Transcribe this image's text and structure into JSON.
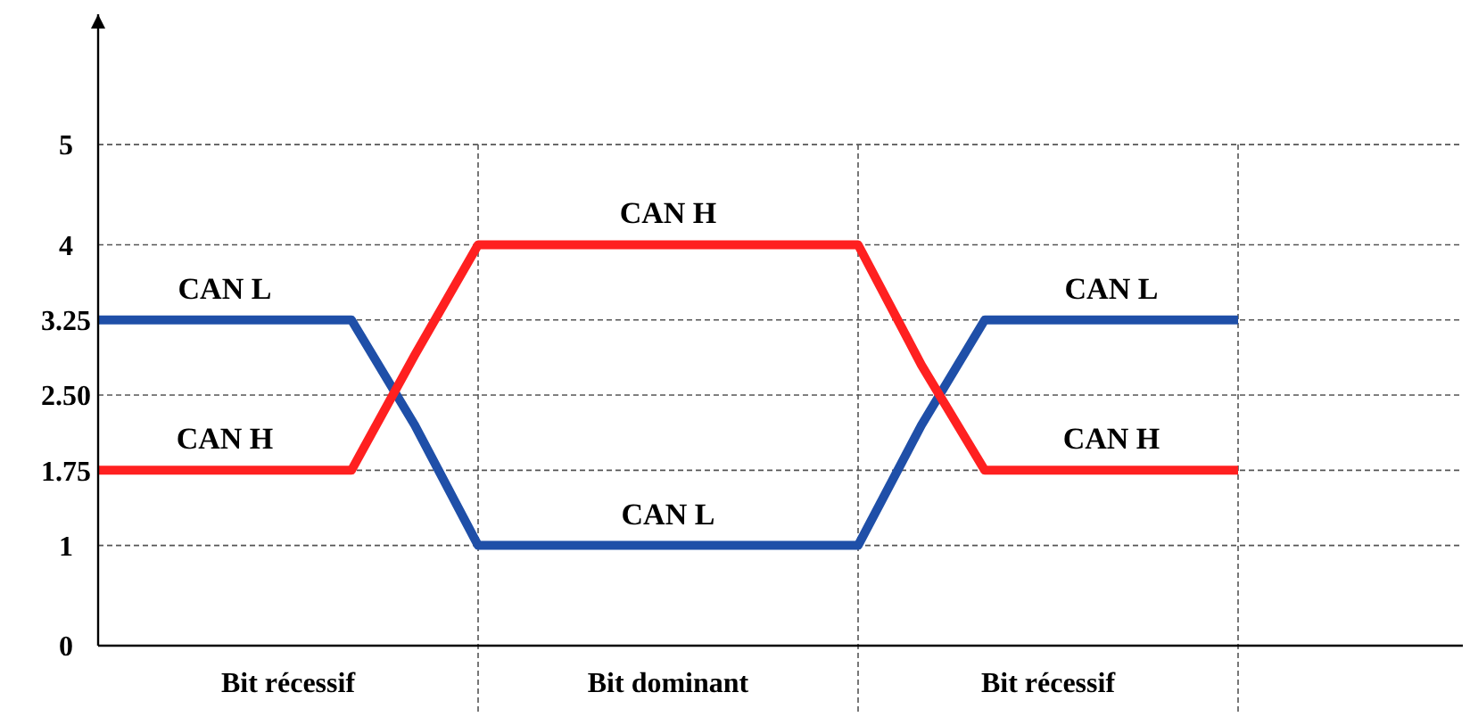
{
  "chart_data": {
    "type": "line",
    "ylim": [
      0,
      6.3
    ],
    "categories": [
      null,
      null,
      null,
      "Bit récessif",
      null,
      null,
      null,
      null,
      null,
      "Bit dominant",
      null,
      null,
      null,
      null,
      null,
      "Bit récessif",
      null,
      null,
      null,
      null,
      null,
      null
    ],
    "yticks": [
      0,
      1,
      1.75,
      {
        "value": 2.5,
        "label": "2.50"
      },
      3.25,
      4,
      5
    ],
    "grid": true,
    "line_style": "solid",
    "marker": "none",
    "series": [
      {
        "name": "CAN L",
        "color": "#1f4fa8",
        "values": [
          3.25,
          3.25,
          3.25,
          3.25,
          3.25,
          2.2,
          1,
          1,
          1,
          1,
          1,
          1,
          1,
          2.2,
          3.25,
          3.25,
          3.25,
          3.25,
          3.25,
          null,
          null,
          null
        ]
      },
      {
        "name": "CAN H",
        "color": "#ff2020",
        "values": [
          1.75,
          1.75,
          1.75,
          1.75,
          1.75,
          2.9,
          4,
          4,
          4,
          4,
          4,
          4,
          4,
          2.8,
          1.75,
          1.75,
          1.75,
          1.75,
          1.75,
          null,
          null,
          null
        ]
      }
    ]
  }
}
